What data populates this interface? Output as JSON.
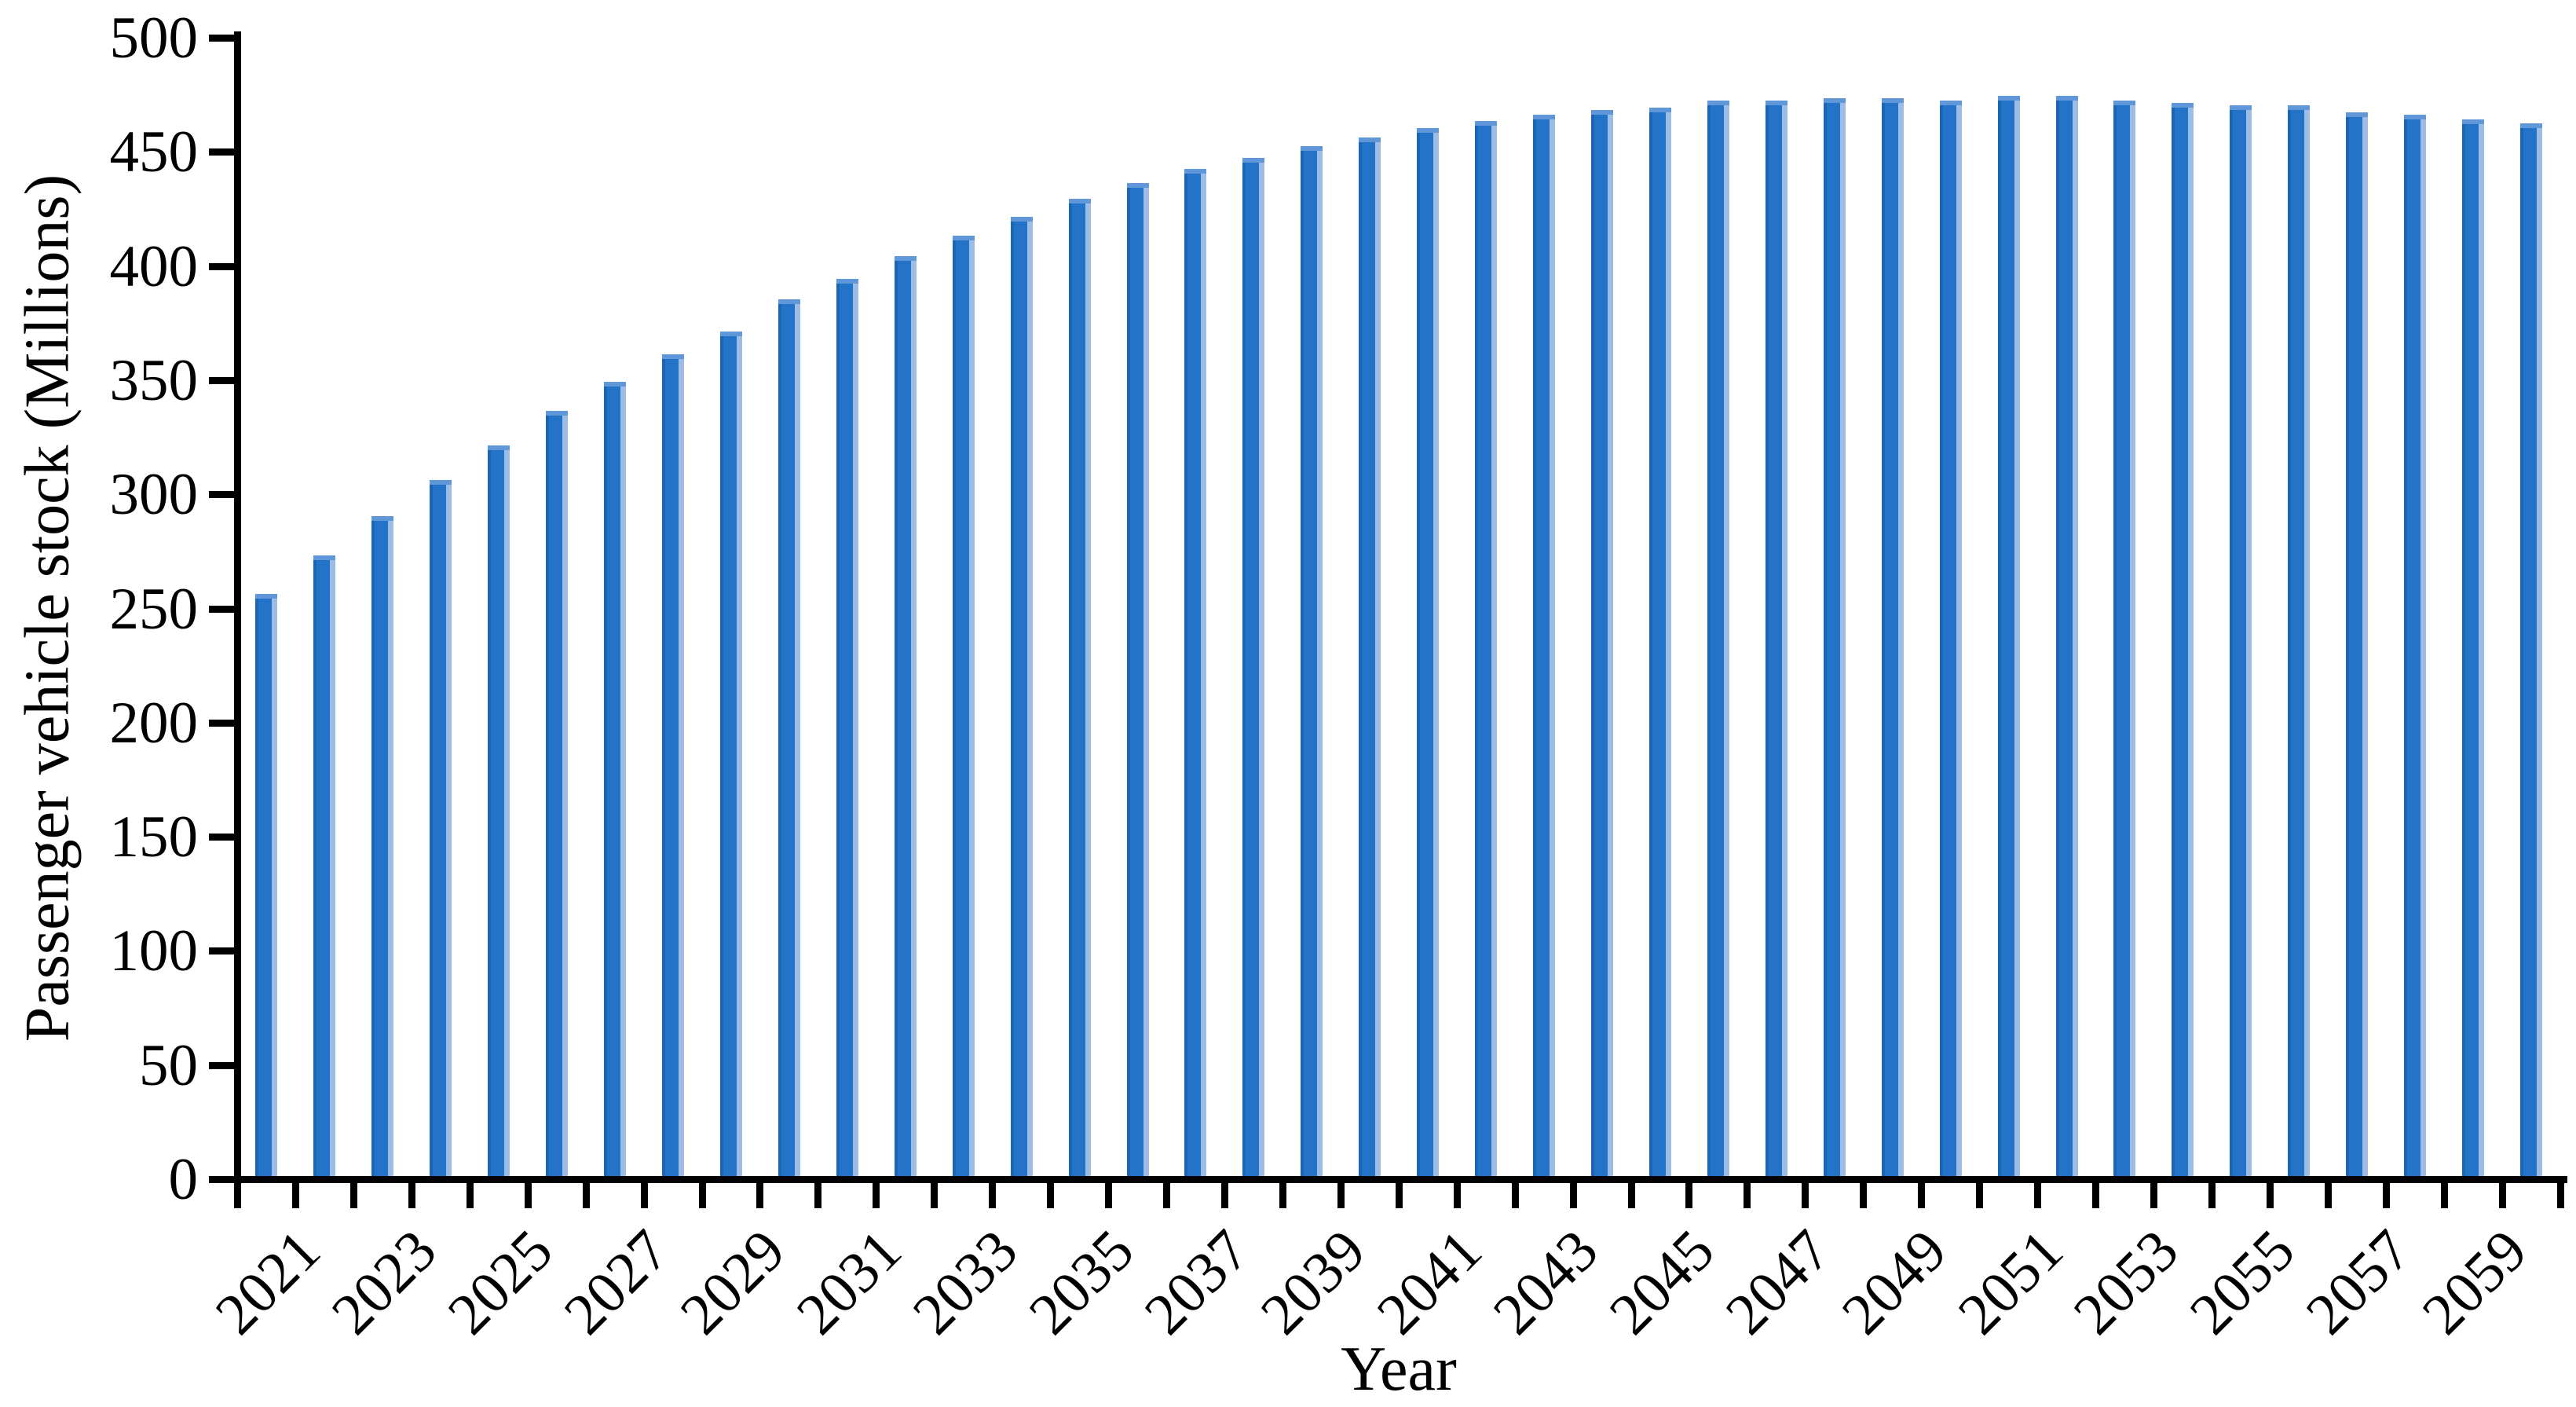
{
  "chart_data": {
    "type": "bar",
    "title": "",
    "xlabel": "Year",
    "ylabel": "Passenger vehicle stock (Millions)",
    "categories": [
      "2021",
      "2022",
      "2023",
      "2024",
      "2025",
      "2026",
      "2027",
      "2028",
      "2029",
      "2030",
      "2031",
      "2032",
      "2033",
      "2034",
      "2035",
      "2036",
      "2037",
      "2038",
      "2039",
      "2040",
      "2041",
      "2042",
      "2043",
      "2044",
      "2045",
      "2046",
      "2047",
      "2048",
      "2049",
      "2050",
      "2051",
      "2052",
      "2053",
      "2054",
      "2055",
      "2056",
      "2057",
      "2058",
      "2059",
      "2060"
    ],
    "values": [
      255,
      272,
      289,
      305,
      320,
      335,
      348,
      360,
      370,
      384,
      393,
      403,
      412,
      420,
      428,
      435,
      441,
      446,
      451,
      455,
      459,
      462,
      465,
      467,
      468,
      471,
      471,
      472,
      472,
      471,
      473,
      473,
      471,
      470,
      469,
      469,
      466,
      465,
      463,
      461
    ],
    "ylim": [
      0,
      500
    ],
    "ytick_step": 50,
    "ytick_labels": [
      "0",
      "50",
      "100",
      "150",
      "200",
      "250",
      "300",
      "350",
      "400",
      "450",
      "500"
    ],
    "x_labeled_categories": [
      "2021",
      "2023",
      "2025",
      "2027",
      "2029",
      "2031",
      "2033",
      "2035",
      "2037",
      "2039",
      "2041",
      "2043",
      "2045",
      "2047",
      "2049",
      "2051",
      "2053",
      "2055",
      "2057",
      "2059"
    ],
    "legend_position": "none",
    "grid": false,
    "colors": {
      "bar_fill": "#2373c8",
      "bar_fill_dark": "#1b66b4",
      "bar_edge_light": "#9dbde6",
      "bar_top_highlight": "#5f97d8",
      "axis": "#000000",
      "background": "#ffffff",
      "text": "#000000"
    }
  }
}
